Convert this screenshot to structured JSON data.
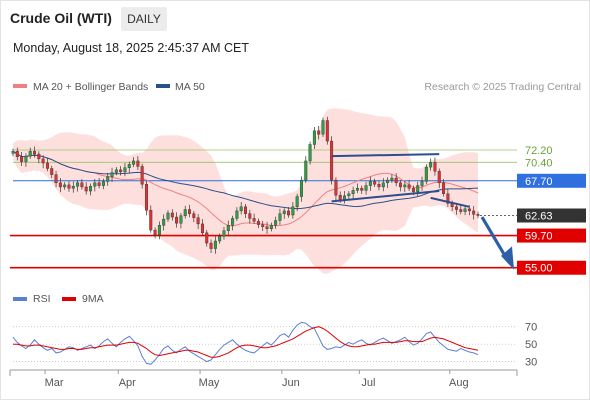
{
  "header": {
    "instrument": "Crude Oil (WTI)",
    "timeframe": "DAILY",
    "datetime": "Monday, August 18, 2025 2:45:37 AM CET"
  },
  "legend": {
    "ma20_label": "MA 20 + Bollinger Bands",
    "ma50_label": "MA 50",
    "copyright": "Research © 2025 Trading Central",
    "rsi_label": "RSI",
    "rsi_ma_label": "9MA"
  },
  "colors": {
    "ma20": "#f08080",
    "ma50": "#2c4e8c",
    "band_fill": "#fde0de",
    "candle_up": "#2f9e44",
    "candle_down": "#e03131",
    "support": "#e00000",
    "resistance": "#98c46a",
    "pivot": "#2f6fe0",
    "last": "#333333",
    "rsi": "#5b7fd6",
    "rsi_ma": "#e00000"
  },
  "chart_data": [
    {
      "type": "candlestick",
      "title": "Crude Oil (WTI)",
      "x_tick_labels": [
        "Mar",
        "Apr",
        "May",
        "Jun",
        "Jul",
        "Aug"
      ],
      "ylim": [
        53.5,
        79.5
      ],
      "levels": [
        {
          "value": 72.2,
          "label": "72.20",
          "kind": "resistance"
        },
        {
          "value": 70.4,
          "label": "70.40",
          "kind": "resistance"
        },
        {
          "value": 67.7,
          "label": "67.70",
          "kind": "pivot"
        },
        {
          "value": 62.63,
          "label": "62.63",
          "kind": "last"
        },
        {
          "value": 59.7,
          "label": "59.70",
          "kind": "support"
        },
        {
          "value": 55.0,
          "label": "55.00",
          "kind": "support"
        }
      ],
      "series": [
        {
          "name": "MA 20 + Bollinger Bands",
          "kind": "ma"
        },
        {
          "name": "MA 50",
          "kind": "ma"
        }
      ],
      "closes": [
        72.0,
        71.2,
        70.5,
        71.3,
        72.0,
        71.6,
        70.9,
        70.3,
        69.5,
        68.6,
        67.4,
        66.8,
        67.1,
        66.6,
        66.9,
        67.4,
        66.8,
        66.2,
        66.9,
        67.4,
        67.0,
        67.6,
        68.3,
        68.9,
        69.3,
        69.0,
        69.6,
        70.1,
        70.6,
        69.8,
        67.2,
        63.4,
        60.5,
        59.8,
        61.2,
        62.1,
        63.0,
        62.4,
        61.5,
        62.6,
        63.5,
        62.9,
        62.3,
        61.4,
        60.1,
        58.6,
        57.8,
        58.9,
        59.6,
        60.4,
        61.2,
        62.2,
        63.3,
        63.9,
        62.9,
        62.2,
        61.8,
        61.3,
        61.0,
        60.7,
        61.2,
        61.9,
        62.9,
        63.3,
        62.7,
        63.9,
        65.4,
        67.8,
        70.6,
        73.0,
        75.0,
        74.5,
        76.5,
        73.5,
        67.8,
        65.6,
        64.9,
        65.5,
        65.8,
        66.3,
        66.6,
        66.3,
        67.0,
        67.6,
        67.2,
        66.8,
        67.4,
        67.8,
        68.1,
        67.4,
        66.8,
        67.1,
        66.6,
        66.1,
        67.0,
        67.6,
        69.7,
        70.4,
        69.1,
        67.4,
        65.8,
        64.4,
        63.9,
        63.5,
        63.2,
        63.6,
        63.3,
        62.8,
        62.63
      ]
    },
    {
      "type": "line",
      "title": "RSI",
      "ylim": [
        25,
        80
      ],
      "y_ticks": [
        70,
        50,
        30
      ],
      "series": [
        {
          "name": "RSI"
        },
        {
          "name": "9MA"
        }
      ],
      "rsi": [
        58,
        52,
        48,
        45,
        49,
        55,
        50,
        46,
        43,
        45,
        40,
        41,
        44,
        47,
        46,
        43,
        45,
        47,
        49,
        45,
        48,
        53,
        56,
        51,
        47,
        52,
        56,
        59,
        54,
        48,
        36,
        28,
        27,
        32,
        38,
        45,
        48,
        43,
        40,
        44,
        47,
        42,
        39,
        36,
        33,
        30,
        32,
        38,
        44,
        49,
        52,
        55,
        50,
        46,
        43,
        41,
        40,
        44,
        48,
        52,
        49,
        54,
        60,
        62,
        58,
        66,
        72,
        75,
        74,
        70,
        68,
        58,
        48,
        44,
        45,
        47,
        46,
        49,
        52,
        50,
        53,
        55,
        51,
        49,
        52,
        55,
        57,
        54,
        51,
        53,
        55,
        58,
        53,
        49,
        51,
        56,
        62,
        64,
        58,
        52,
        48,
        44,
        43,
        42,
        45,
        43,
        41,
        40,
        38
      ],
      "rsi_ma": [
        50,
        50,
        49,
        48,
        48,
        49,
        49,
        48,
        47,
        46,
        45,
        44,
        44,
        45,
        45,
        44,
        44,
        45,
        46,
        46,
        47,
        48,
        49,
        49,
        49,
        50,
        51,
        52,
        52,
        51,
        48,
        45,
        41,
        38,
        37,
        38,
        39,
        40,
        41,
        42,
        43,
        43,
        42,
        41,
        39,
        37,
        35,
        35,
        36,
        38,
        40,
        43,
        46,
        48,
        49,
        49,
        48,
        47,
        46,
        46,
        47,
        48,
        50,
        52,
        54,
        56,
        59,
        62,
        65,
        67,
        69,
        70,
        68,
        65,
        61,
        57,
        53,
        50,
        48,
        47,
        47,
        48,
        49,
        50,
        50,
        51,
        52,
        52,
        52,
        52,
        53,
        54,
        54,
        53,
        53,
        53,
        55,
        57,
        58,
        57,
        56,
        54,
        52,
        50,
        48,
        46,
        45,
        44,
        43
      ]
    }
  ]
}
